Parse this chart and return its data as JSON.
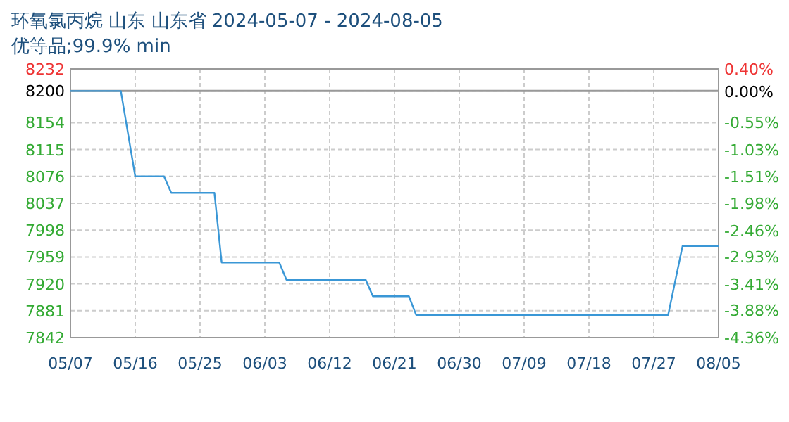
{
  "chart_data": {
    "type": "line",
    "title": "环氧氯丙烷 山东 山东省 2024-05-07 - 2024-08-05",
    "subtitle": "优等品;99.9% min",
    "series": [
      {
        "color": "#3a97d6",
        "x": [
          "2024-05-07",
          "2024-05-14",
          "2024-05-16",
          "2024-05-20",
          "2024-05-21",
          "2024-05-27",
          "2024-05-28",
          "2024-06-05",
          "2024-06-06",
          "2024-06-17",
          "2024-06-18",
          "2024-06-23",
          "2024-06-24",
          "2024-07-29",
          "2024-07-31",
          "2024-08-05"
        ],
        "values": [
          8200,
          8200,
          8076,
          8076,
          8052,
          8052,
          7951,
          7951,
          7926,
          7926,
          7902,
          7902,
          7875,
          7875,
          7975,
          7975
        ]
      }
    ],
    "xlim": [
      "2024-05-07",
      "2024-08-05"
    ],
    "xticks": [
      {
        "value": "2024-05-07",
        "label": "05/07"
      },
      {
        "value": "2024-05-16",
        "label": "05/16"
      },
      {
        "value": "2024-05-25",
        "label": "05/25"
      },
      {
        "value": "2024-06-03",
        "label": "06/03"
      },
      {
        "value": "2024-06-12",
        "label": "06/12"
      },
      {
        "value": "2024-06-21",
        "label": "06/21"
      },
      {
        "value": "2024-06-30",
        "label": "06/30"
      },
      {
        "value": "2024-07-09",
        "label": "07/09"
      },
      {
        "value": "2024-07-18",
        "label": "07/18"
      },
      {
        "value": "2024-07-27",
        "label": "07/27"
      },
      {
        "value": "2024-08-05",
        "label": "08/05"
      }
    ],
    "ylim": [
      7842,
      8232
    ],
    "yticks": [
      8232,
      8200,
      8154,
      8115,
      8076,
      8037,
      7998,
      7959,
      7920,
      7881,
      7842
    ],
    "y2lim": [
      -4.36,
      0.4
    ],
    "y2ticks": [
      {
        "value": 0.4,
        "label": "0.40%"
      },
      {
        "value": 0,
        "label": "0.00%"
      },
      {
        "value": -0.55,
        "label": "-0.55%"
      },
      {
        "value": -1.03,
        "label": "-1.03%"
      },
      {
        "value": -1.51,
        "label": "-1.51%"
      },
      {
        "value": -1.98,
        "label": "-1.98%"
      },
      {
        "value": -2.46,
        "label": "-2.46%"
      },
      {
        "value": -2.93,
        "label": "-2.93%"
      },
      {
        "value": -3.41,
        "label": "-3.41%"
      },
      {
        "value": -3.88,
        "label": "-3.88%"
      },
      {
        "value": -4.36,
        "label": "-4.36%"
      }
    ],
    "ref_lines": [
      {
        "axis": "y",
        "value": 8200,
        "color": "#999999"
      }
    ],
    "grid": true,
    "line_style": "solid",
    "marker": "none"
  }
}
